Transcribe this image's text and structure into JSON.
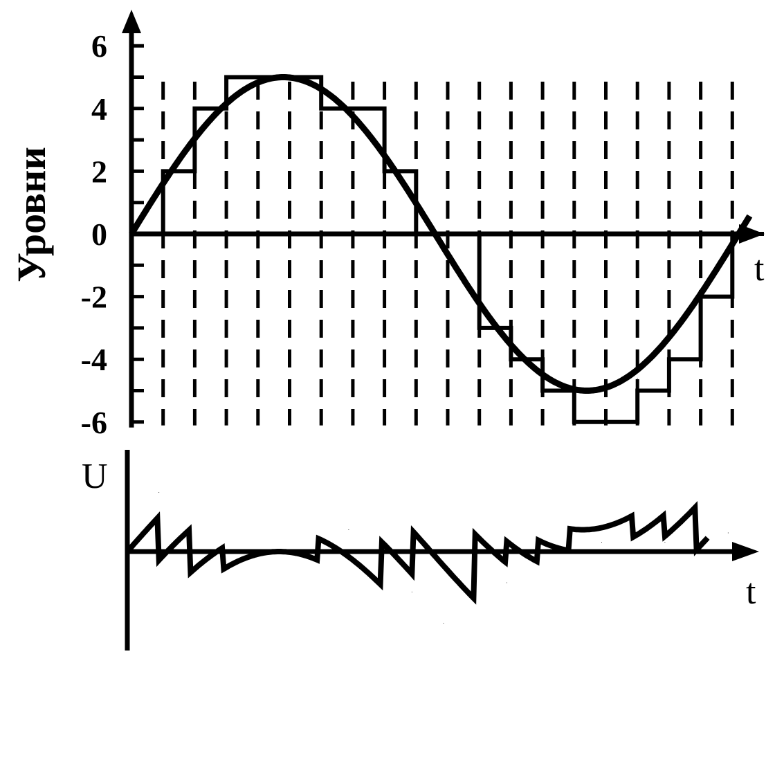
{
  "chart_data": [
    {
      "type": "line",
      "title": "",
      "xlabel": "t",
      "ylabel": "Уровни",
      "ylim": [
        -6,
        6
      ],
      "y_ticks": [
        -6,
        -4,
        -2,
        0,
        2,
        4,
        6
      ],
      "y_tick_labels": [
        "-6",
        "-4",
        "-2",
        "0",
        "2",
        "4",
        "6"
      ],
      "grid": "vertical dashed lines at sampling instants",
      "x": [
        0,
        1,
        2,
        3,
        4,
        5,
        6,
        7,
        8,
        9,
        10,
        11,
        12,
        13,
        14,
        15,
        16,
        17,
        18,
        19
      ],
      "series": [
        {
          "style": "smooth-curve",
          "period_samples": 19.2,
          "amplitude": 5,
          "values": [
            0,
            1.6,
            3.0,
            4.1,
            4.8,
            5.0,
            4.7,
            3.9,
            2.8,
            1.3,
            -0.3,
            -1.8,
            -3.2,
            -4.3,
            -4.9,
            -5.0,
            -4.6,
            -3.7,
            -2.4,
            -0.9
          ]
        },
        {
          "style": "staircase",
          "values": [
            0,
            2,
            4,
            5,
            5,
            5,
            4,
            4,
            2,
            0,
            0,
            -3,
            -4,
            -5,
            -6,
            -6,
            -5,
            -4,
            -2,
            0
          ]
        }
      ]
    },
    {
      "type": "line",
      "title": "",
      "xlabel": "t",
      "ylabel": "U",
      "x": [
        0,
        1,
        2,
        3,
        4,
        5,
        6,
        7,
        8,
        9,
        10,
        11,
        12,
        13,
        14,
        15,
        16,
        17,
        18,
        19
      ],
      "series": [
        {
          "style": "sawtooth-error",
          "values": [
            0.5,
            1.9,
            0.3,
            0.1,
            -0.2,
            0.0,
            -0.1,
            0.7,
            -0.2,
            -1.3,
            -2.3,
            -0.5,
            -1.0,
            -0.3,
            0.1,
            0.3,
            0.0,
            0.3,
            1.4,
            0.6
          ]
        }
      ]
    }
  ]
}
